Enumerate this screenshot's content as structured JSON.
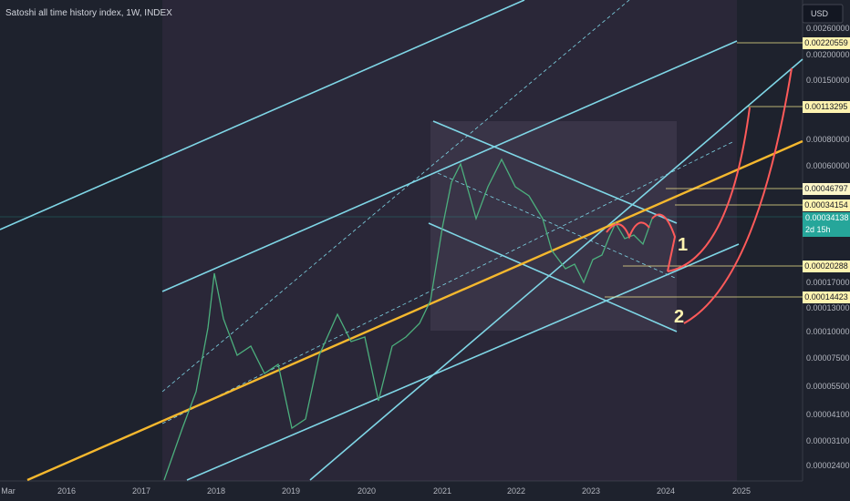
{
  "header": {
    "title": "Satoshi all time history index, 1W, INDEX",
    "currency": "USD"
  },
  "price_axis": {
    "labels": [
      "0.00260000",
      "0.00200000",
      "0.00150000",
      "0.00080000",
      "0.00060000",
      "0.00017000",
      "0.00013000",
      "0.00010000",
      "0.00007500",
      "0.00005500",
      "0.00004100",
      "0.00003100",
      "0.00002400"
    ],
    "levels": [
      "0.00220559",
      "0.00113295",
      "0.00046797",
      "0.00034154",
      "0.00020288",
      "0.00014423"
    ],
    "last_price": "0.00034138",
    "countdown": "2d 15h"
  },
  "time_axis": {
    "labels": [
      "Mar",
      "2016",
      "2017",
      "2018",
      "2019",
      "2020",
      "2021",
      "2022",
      "2023",
      "2024",
      "2025"
    ]
  },
  "annotations": [
    "1",
    "2"
  ]
}
